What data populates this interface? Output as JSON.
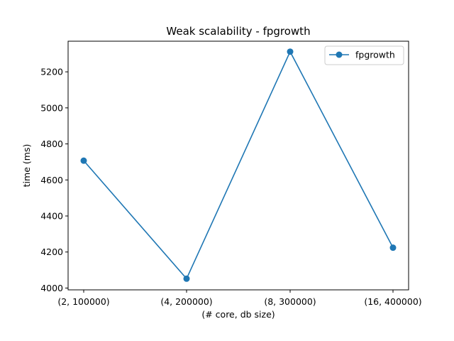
{
  "chart_data": {
    "type": "line",
    "title": "Weak scalability - fpgrowth",
    "xlabel": "(# core, db size)",
    "ylabel": "time (ms)",
    "categories": [
      "(2, 100000)",
      "(4, 200000)",
      "(8, 300000)",
      "(16, 400000)"
    ],
    "series": [
      {
        "name": "fpgrowth",
        "values": [
          4707,
          4052,
          5312,
          4224
        ],
        "color": "#1f77b4",
        "marker": "circle"
      }
    ],
    "ylim": [
      3990,
      5370
    ],
    "yticks": [
      4000,
      4200,
      4400,
      4600,
      4800,
      5000,
      5200
    ],
    "grid": false,
    "legend_position": "top-right"
  }
}
